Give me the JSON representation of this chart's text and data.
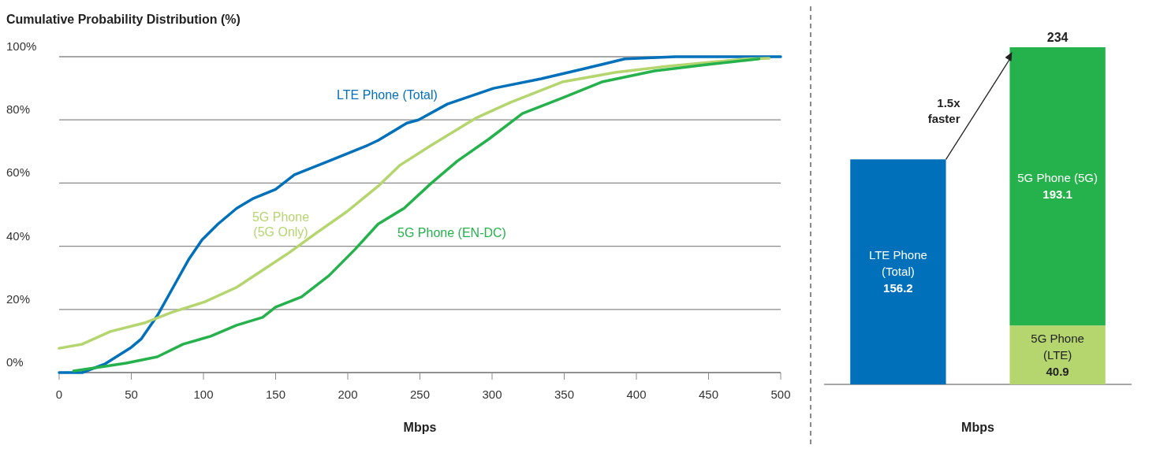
{
  "chart_data": [
    {
      "type": "line",
      "title": "Cumulative Probability Distribution (%)",
      "xlabel": "Mbps",
      "xlim": [
        0,
        500
      ],
      "xticks": [
        0,
        50,
        100,
        150,
        200,
        250,
        300,
        350,
        400,
        450,
        500
      ],
      "ylim": [
        0,
        100
      ],
      "yticks": [
        {
          "value": 0,
          "label": "0%"
        },
        {
          "value": 20,
          "label": "20%"
        },
        {
          "value": 40,
          "label": "40%"
        },
        {
          "value": 60,
          "label": "60%"
        },
        {
          "value": 80,
          "label": "80%"
        },
        {
          "value": 100,
          "label": "100%"
        }
      ],
      "grid": "y",
      "legend": false,
      "marker": "none",
      "line_style": "solid",
      "series": [
        {
          "name": "LTE Phone (Total)",
          "color": "#0070ba",
          "x": [
            0,
            16,
            32,
            50,
            57,
            68,
            79,
            90,
            99,
            110,
            123,
            134,
            150,
            163,
            187,
            214,
            221,
            241,
            249,
            269,
            301,
            334,
            362,
            392,
            427,
            500
          ],
          "values": [
            0,
            0,
            2.8,
            8,
            10.7,
            18,
            27,
            36,
            42,
            47,
            52,
            55,
            58,
            62.6,
            67,
            72,
            73.5,
            79,
            80,
            85,
            90,
            93,
            96,
            99.3,
            100,
            100
          ]
        },
        {
          "name": "5G Phone\n(5G Only)",
          "color": "#b5d56f",
          "x": [
            0,
            16,
            35.5,
            59,
            77.5,
            101,
            123,
            141,
            159.5,
            177.6,
            199.5,
            221,
            236,
            258,
            288.5,
            312.6,
            348.6,
            385,
            422,
            476.5,
            492
          ],
          "values": [
            7.7,
            9,
            13,
            15.7,
            19,
            22.4,
            27,
            32.4,
            38,
            44,
            51,
            59,
            65.6,
            72,
            80.5,
            85.5,
            92,
            95,
            97,
            99.3,
            99.5
          ]
        },
        {
          "name": "5G Phone (EN-DC)",
          "color": "#25b14b",
          "x": [
            10,
            32,
            46.5,
            68,
            86,
            105,
            123,
            141,
            150,
            168,
            187,
            205,
            221,
            239,
            258,
            276,
            298,
            321,
            349,
            376,
            412.6,
            449,
            485
          ],
          "values": [
            0.5,
            2,
            3,
            5,
            9,
            11.5,
            15,
            17.5,
            20.7,
            24,
            30.7,
            39,
            47,
            52,
            60,
            67,
            74,
            82,
            87,
            92,
            95.5,
            97.5,
            99.3
          ]
        }
      ]
    },
    {
      "type": "bar",
      "stacked": true,
      "xlabel": "Mbps",
      "categories": [
        null,
        null
      ],
      "data_labels": true,
      "totals": [
        null,
        "234"
      ],
      "annotations": [
        "1.5x\nfaster"
      ],
      "series": [
        {
          "name": "LTE Phone (Total)",
          "color": "#0070ba",
          "values": [
            156.2,
            null
          ]
        },
        {
          "name": "5G Phone (LTE)",
          "color": "#b5d56f",
          "values": [
            null,
            40.9
          ]
        },
        {
          "name": "5G Phone (5G)",
          "color": "#25b14b",
          "values": [
            null,
            193.1
          ]
        }
      ]
    }
  ]
}
